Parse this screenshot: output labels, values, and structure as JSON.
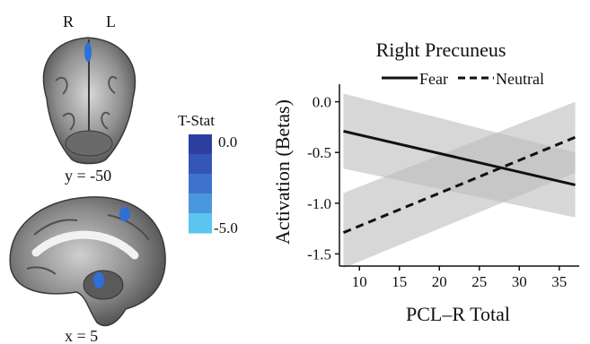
{
  "brain_panel": {
    "coronal": {
      "label_right": "R",
      "label_left": "L",
      "caption": "y = -50"
    },
    "sagittal": {
      "caption": "x = 5"
    },
    "colorbar": {
      "title": "T-Stat",
      "max_label": "0.0",
      "min_label": "-5.0",
      "colors": [
        "#2c3fa0",
        "#3456b8",
        "#3e72cc",
        "#4a97de",
        "#5cc4f0"
      ]
    },
    "blob_color": "#2f6fd8"
  },
  "chart_data": {
    "type": "line",
    "title": "Right Precuneus",
    "xlabel": "PCL–R Total",
    "ylabel": "Activation (Betas)",
    "xlim": [
      7.5,
      37.5
    ],
    "ylim": [
      -1.62,
      0.12
    ],
    "xticks": [
      10,
      15,
      20,
      25,
      30,
      35
    ],
    "yticks": [
      0.0,
      -0.5,
      -1.0,
      -1.5
    ],
    "ytick_labels": [
      "0.0",
      "-0.5",
      "-1.0",
      "-1.5"
    ],
    "legend_position": "top",
    "grid": false,
    "series": [
      {
        "name": "Fear",
        "linestyle": "solid",
        "x": [
          8,
          37
        ],
        "y": [
          -0.29,
          -0.82
        ],
        "ci_lower": [
          -0.66,
          -1.14
        ],
        "ci_upper": [
          0.08,
          -0.5
        ]
      },
      {
        "name": "Neutral",
        "linestyle": "dashed",
        "x": [
          8,
          37
        ],
        "y": [
          -1.29,
          -0.35
        ],
        "ci_lower": [
          -1.64,
          -0.7
        ],
        "ci_upper": [
          -0.9,
          0.0
        ]
      }
    ],
    "band_color": "#bdbdbd"
  }
}
